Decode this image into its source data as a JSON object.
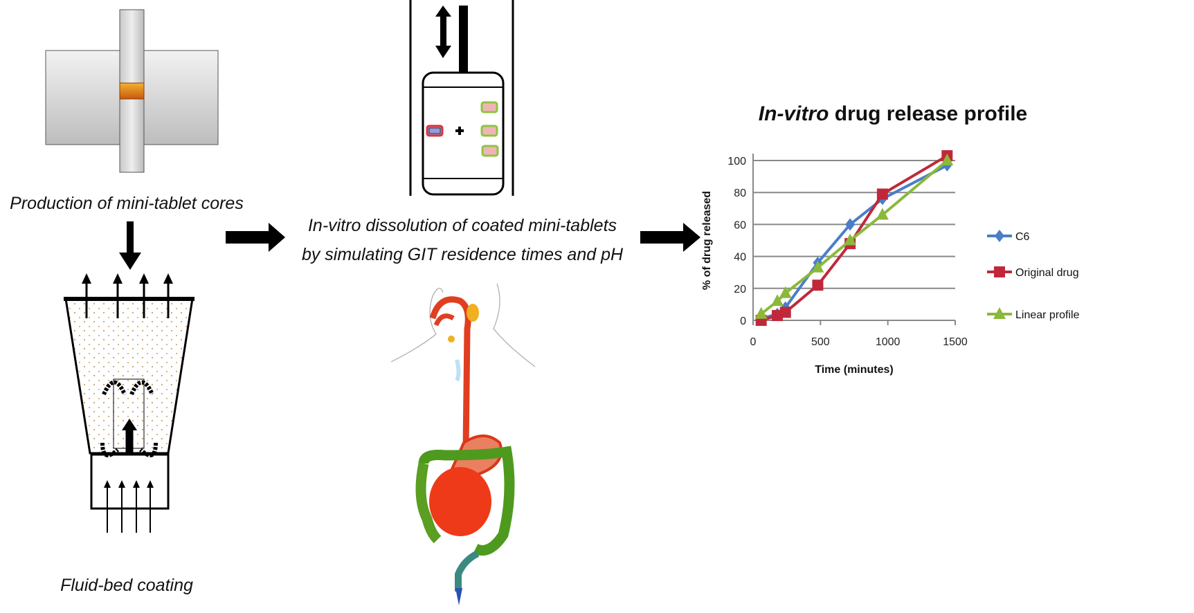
{
  "captions": {
    "production": "Production of mini-tablet cores",
    "fluid_bed": "Fluid-bed coating",
    "dissolution_line1": "In-vitro dissolution of coated mini-tablets",
    "dissolution_line2": "by simulating GIT residence times and pH"
  },
  "colors": {
    "c6": "#4a7ec8",
    "original": "#c0283a",
    "linear": "#8ab93a",
    "core": "#e8841c"
  },
  "chart_data": {
    "type": "line",
    "title_italic": "In-vitro",
    "title_rest": " drug release profile",
    "xlabel": "Time (minutes)",
    "ylabel": "% of drug released",
    "xlim": [
      0,
      1500
    ],
    "ylim": [
      0,
      100
    ],
    "xticks": [
      "0",
      "500",
      "1000",
      "1500"
    ],
    "yticks": [
      "0",
      "20",
      "40",
      "60",
      "80",
      "100"
    ],
    "grid": "horizontal",
    "legend_position": "right",
    "x": [
      60,
      180,
      240,
      480,
      720,
      960,
      1440
    ],
    "series": [
      {
        "name": "C6",
        "marker": "diamond",
        "values": [
          1,
          4,
          8,
          36,
          60,
          76,
          97
        ]
      },
      {
        "name": "Original drug",
        "marker": "square",
        "values": [
          0,
          3,
          5,
          22,
          48,
          79,
          103
        ]
      },
      {
        "name": "Linear profile",
        "marker": "triangle",
        "values": [
          4,
          12,
          17,
          33,
          50,
          66,
          100
        ]
      }
    ]
  }
}
